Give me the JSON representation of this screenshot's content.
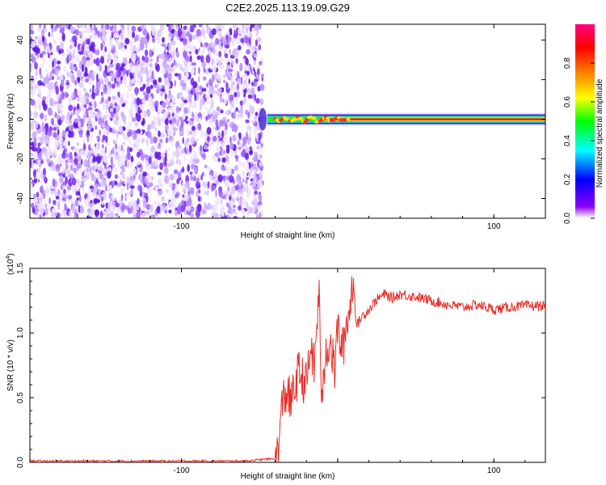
{
  "title": "C2E2.2025.113.19.09.G29",
  "colors": {
    "snr_line": "#e8302a",
    "spectrogram_noise": "#7a2cf0",
    "ridge_core": "#d9241c"
  },
  "chart_data": [
    {
      "type": "heatmap",
      "name": "spectrogram",
      "xlabel": "Height of straight line (km)",
      "ylabel": "Frequency (Hz)",
      "xlim": [
        -197,
        133
      ],
      "ylim": [
        -50,
        48
      ],
      "x_ticks": [
        -100,
        0,
        100
      ],
      "x_tick_labels": [
        "-100",
        "",
        "100"
      ],
      "y_ticks": [
        -40,
        -20,
        0,
        20,
        40
      ],
      "y_tick_labels": [
        "-40",
        "-20",
        "0",
        "20",
        "40"
      ],
      "noise_region_x": [
        -197,
        -48
      ],
      "signal_ridge": {
        "frequency_hz": 0,
        "x_start": -45,
        "x_end": 133
      },
      "colorbar": {
        "label": "Normalized spectral amplitude",
        "range": [
          0.0,
          1.0
        ],
        "ticks": [
          0.0,
          0.2,
          0.4,
          0.6,
          0.8
        ],
        "tick_labels": [
          "0.0",
          "0.2",
          "0.4",
          "0.6",
          "0.8"
        ],
        "colormap": [
          "#ffffff",
          "#8b00ff",
          "#0000ff",
          "#00ffff",
          "#00ff00",
          "#ffff00",
          "#ff8000",
          "#ff0000",
          "#ff0080"
        ]
      }
    },
    {
      "type": "line",
      "name": "snr",
      "xlabel": "Height of straight line (km)",
      "ylabel": "SNR (10 * v/v)",
      "y_multiplier_label": "(x10",
      "y_multiplier_exp": "4",
      "xlim": [
        -197,
        133
      ],
      "ylim": [
        0,
        1.5
      ],
      "x_ticks": [
        -100,
        0,
        100
      ],
      "x_tick_labels": [
        "-100",
        "",
        "100"
      ],
      "y_ticks": [
        0,
        0.5,
        1.0,
        1.5
      ],
      "y_tick_labels": [
        "0.0",
        "0.5",
        "1.0",
        "1.5"
      ],
      "series": [
        {
          "x": [
            -197,
            -180,
            -160,
            -140,
            -120,
            -100,
            -80,
            -60,
            -50,
            -40,
            -38,
            -35,
            -32,
            -30,
            -25,
            -20,
            -17,
            -15,
            -12,
            -10,
            -8,
            -5,
            -2,
            0,
            3,
            6,
            8,
            10,
            12,
            15,
            20,
            25,
            30,
            35,
            40,
            50,
            60,
            70,
            80,
            90,
            100,
            110,
            120,
            133
          ],
          "y": [
            0.01,
            0.01,
            0.01,
            0.01,
            0.01,
            0.01,
            0.01,
            0.01,
            0.02,
            0.03,
            0.1,
            0.5,
            0.55,
            0.45,
            0.7,
            0.6,
            0.9,
            0.7,
            1.35,
            0.4,
            0.85,
            0.95,
            0.7,
            1.05,
            0.85,
            1.1,
            1.2,
            1.45,
            1.05,
            1.12,
            1.18,
            1.26,
            1.3,
            1.27,
            1.3,
            1.28,
            1.25,
            1.22,
            1.2,
            1.22,
            1.18,
            1.2,
            1.21,
            1.21
          ]
        }
      ]
    }
  ]
}
